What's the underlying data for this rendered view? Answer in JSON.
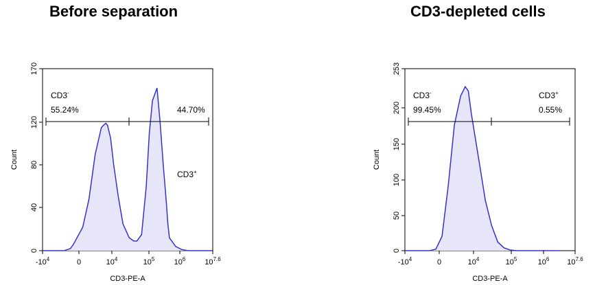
{
  "chart_data": [
    {
      "type": "area",
      "title": "Before separation",
      "xlabel": "CD3-PE-A",
      "ylabel": "Count",
      "x_ticks": [
        {
          "base": "-10",
          "exp": "4"
        },
        {
          "base": "0",
          "exp": ""
        },
        {
          "base": "10",
          "exp": "4"
        },
        {
          "base": "10",
          "exp": "5"
        },
        {
          "base": "10",
          "exp": "6"
        },
        {
          "base": "10",
          "exp": "7.6"
        }
      ],
      "y_ticks": [
        "0",
        "40",
        "80",
        "120",
        "170"
      ],
      "ylim": [
        0,
        170
      ],
      "fill_color": "#e6e6f8",
      "line_color": "#3333cc",
      "x_pos": [
        0,
        0.4,
        0.7,
        0.9,
        1.0,
        1.3,
        1.5,
        1.7,
        1.9,
        2.0,
        2.05,
        2.1,
        2.2,
        2.3,
        2.45,
        2.6,
        2.8,
        2.95,
        3.05,
        3.2,
        3.35,
        3.45,
        3.55,
        3.7,
        3.8,
        3.9,
        4.0,
        4.05,
        4.1,
        4.3,
        4.5,
        4.7,
        5.0,
        5.5
      ],
      "y": [
        0,
        0,
        0,
        2,
        6,
        22,
        48,
        90,
        115,
        118,
        119,
        117,
        105,
        80,
        50,
        25,
        12,
        9,
        9,
        15,
        60,
        110,
        140,
        152,
        120,
        80,
        45,
        25,
        12,
        4,
        1,
        0,
        0,
        0
      ],
      "gates": [
        {
          "name": "CD3",
          "sign": "-",
          "percent": "55.24%"
        },
        {
          "name": "CD3",
          "sign": "+",
          "percent": "44.70%"
        }
      ]
    },
    {
      "type": "area",
      "title": "CD3-depleted cells",
      "xlabel": "CD3-PE-A",
      "ylabel": "Count",
      "x_ticks": [
        {
          "base": "-10",
          "exp": "4"
        },
        {
          "base": "0",
          "exp": ""
        },
        {
          "base": "10",
          "exp": "4"
        },
        {
          "base": "10",
          "exp": "5"
        },
        {
          "base": "10",
          "exp": "6"
        },
        {
          "base": "10",
          "exp": "7.6"
        }
      ],
      "y_ticks": [
        "0",
        "50",
        "100",
        "150",
        "200",
        "253"
      ],
      "ylim": [
        0,
        253
      ],
      "fill_color": "#e6e6f8",
      "line_color": "#3333cc",
      "x_pos": [
        0,
        0.4,
        0.8,
        1.0,
        1.2,
        1.4,
        1.6,
        1.8,
        1.95,
        2.05,
        2.15,
        2.3,
        2.45,
        2.6,
        2.8,
        3.0,
        3.2,
        3.4,
        3.6,
        4.0,
        5.0
      ],
      "y": [
        0,
        0,
        0,
        2,
        20,
        90,
        175,
        215,
        228,
        222,
        190,
        150,
        110,
        70,
        35,
        12,
        4,
        1,
        0,
        0,
        0
      ],
      "gates": [
        {
          "name": "CD3",
          "sign": "-",
          "percent": "99.45%"
        },
        {
          "name": "CD3",
          "sign": "+",
          "percent": "0.55%"
        }
      ]
    }
  ]
}
